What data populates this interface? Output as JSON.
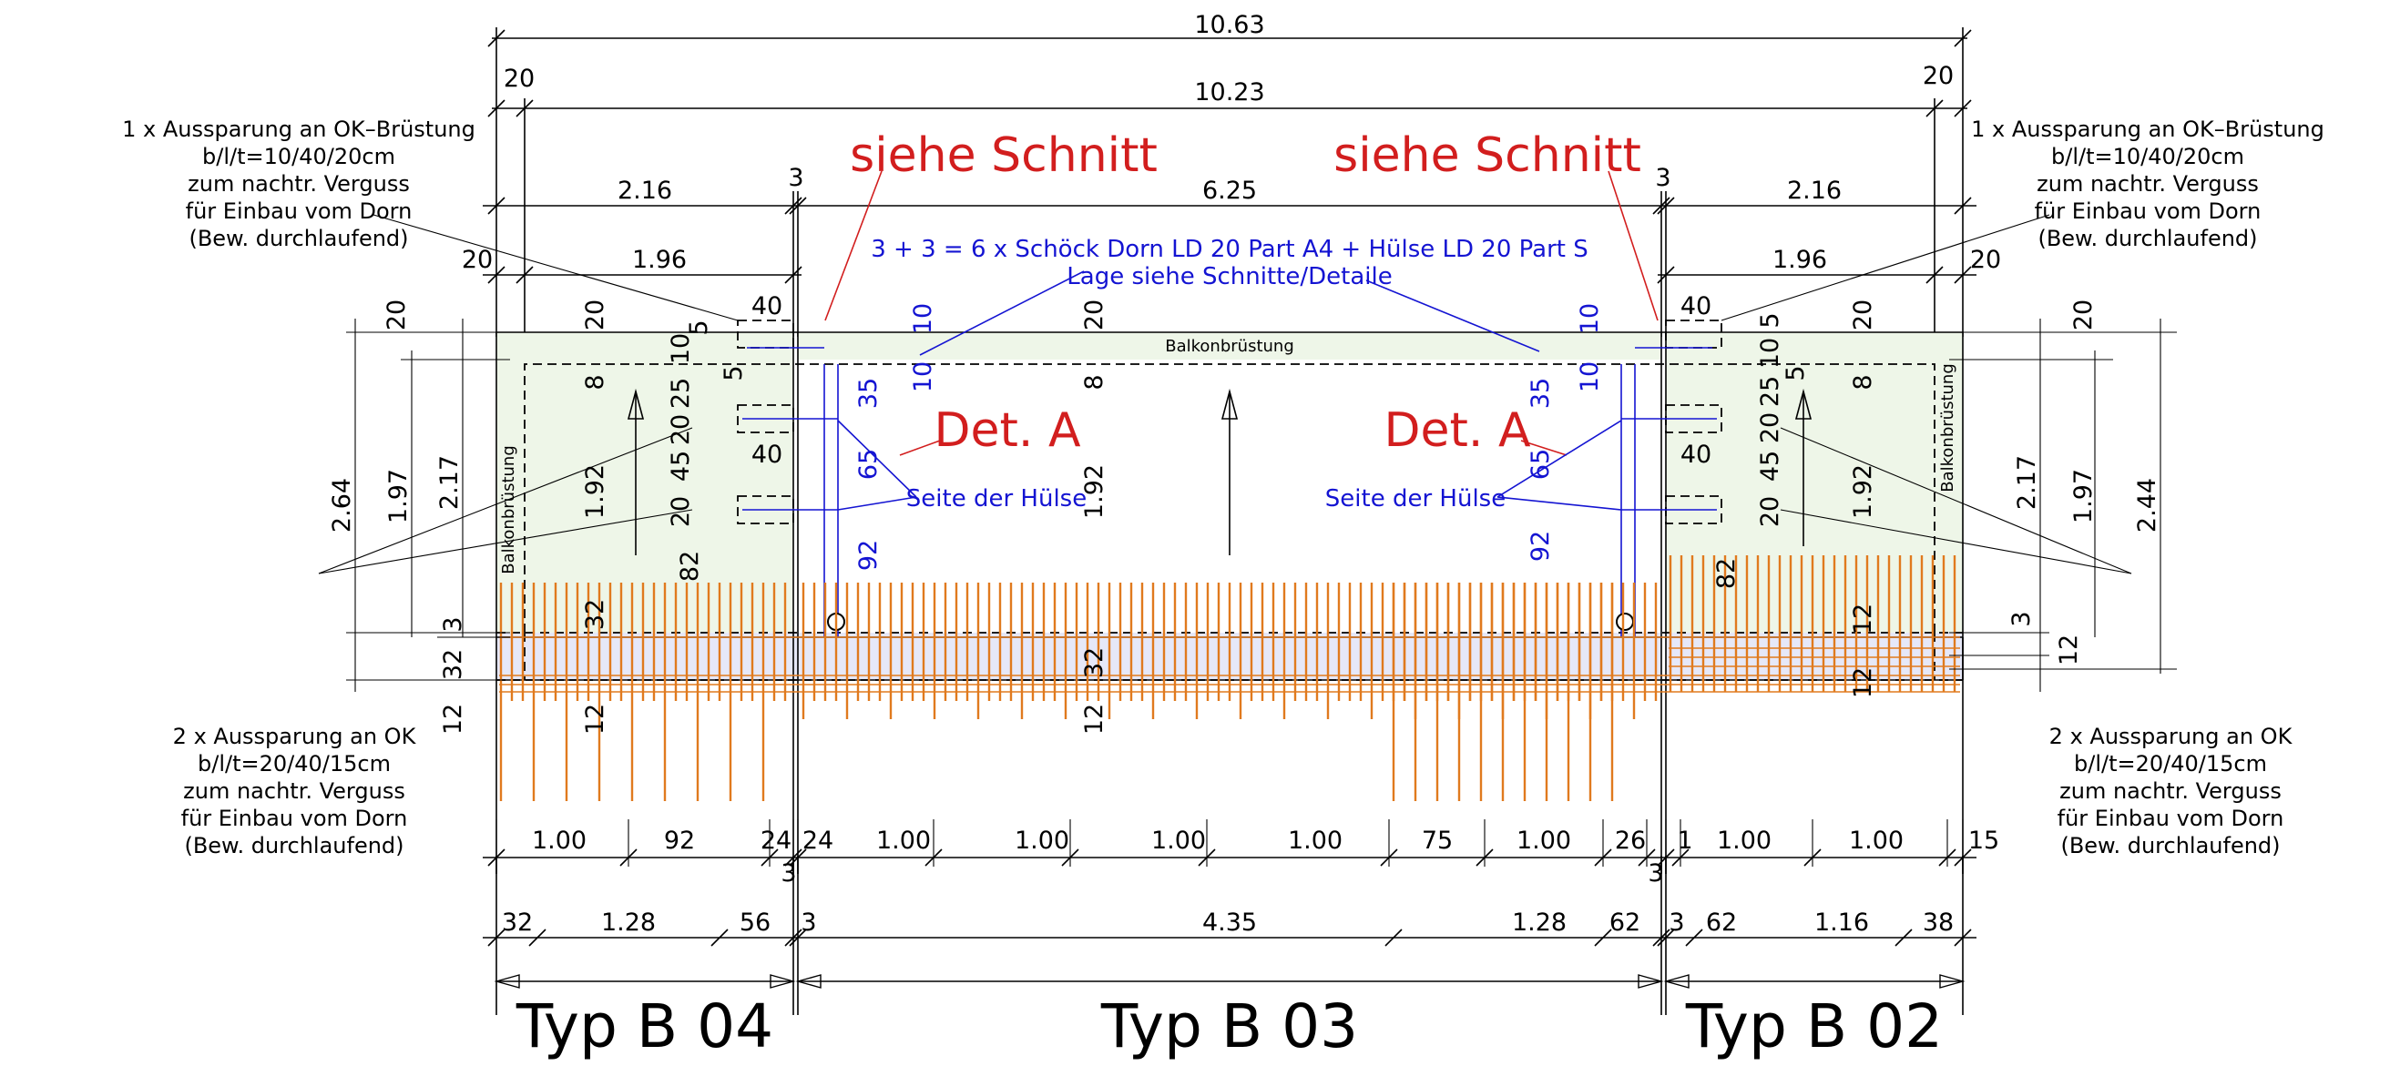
{
  "colors": {
    "line": "#000000",
    "blue": "#1414d2",
    "red": "#d21e1e",
    "reinforcement": "#e07a1e",
    "parapet_fill": "#eef6e8",
    "strip_fill": "#e6e8f8"
  },
  "top_dims": {
    "total": "10.63",
    "inner": "10.23",
    "left_offset": "20",
    "right_offset": "20",
    "seg_left": "2.16",
    "seg_mid": "6.25",
    "seg_right": "2.16",
    "joint_left": "3",
    "joint_right": "3",
    "left_sub": "1.96",
    "right_sub": "1.96",
    "left_sub_offset": "20",
    "right_sub_offset": "20"
  },
  "callouts": {
    "siehe_left": "siehe Schnitt",
    "siehe_right": "siehe Schnitt",
    "det_left": "Det. A",
    "det_right": "Det. A",
    "dorn_line1": "3 + 3 = 6 x Schöck Dorn LD 20 Part A4 + Hülse LD 20 Part S",
    "dorn_line2": "Lage siehe Schnitte/Detaile",
    "huelse_left": "Seite der Hülse",
    "huelse_right": "Seite der Hülse",
    "balkon_top": "Balkonbrüstung",
    "balkon_left": "Balkonbrüstung",
    "balkon_right": "Balkonbrüstung"
  },
  "notes": {
    "top_left": [
      "1 x Aussparung an OK–Brüstung",
      "b/l/t=10/40/20cm",
      "zum nachtr. Verguss",
      "für Einbau vom Dorn",
      "(Bew. durchlaufend)"
    ],
    "top_right": [
      "1 x Aussparung an OK–Brüstung",
      "b/l/t=10/40/20cm",
      "zum nachtr. Verguss",
      "für Einbau vom Dorn",
      "(Bew. durchlaufend)"
    ],
    "bottom_left": [
      "2 x Aussparung an OK",
      "b/l/t=20/40/15cm",
      "zum nachtr. Verguss",
      "für Einbau vom Dorn",
      "(Bew. durchlaufend)"
    ],
    "bottom_right": [
      "2 x Aussparung an OK",
      "b/l/t=20/40/15cm",
      "zum nachtr. Verguss",
      "für Einbau vom Dorn",
      "(Bew. durchlaufend)"
    ]
  },
  "left_dims": {
    "d264": "2.64",
    "d197": "1.97",
    "d217": "2.17",
    "d20a": "20",
    "d20b": "20",
    "d3": "3",
    "d32": "32",
    "d12": "12",
    "d192": "1.92",
    "d8": "8",
    "d82": "82",
    "d10": "10",
    "d5a": "5",
    "d5b": "5",
    "d25": "25",
    "d20c": "20",
    "d45": "45",
    "d20d": "20",
    "d40a": "40",
    "d40b": "40",
    "d32b": "32",
    "d12b": "12"
  },
  "mid_dims": {
    "d20": "20",
    "d8": "8",
    "d192": "1.92",
    "d32": "32",
    "d12": "12",
    "blue_10a": "10",
    "blue_10b": "10",
    "blue_35": "35",
    "blue_65": "65",
    "blue_92": "92",
    "blue_10c": "10",
    "blue_10d": "10",
    "blue_35b": "35",
    "blue_65b": "65",
    "blue_92b": "92"
  },
  "right_dims": {
    "d40a": "40",
    "d5": "5",
    "d10": "10",
    "d20": "20",
    "d8": "8",
    "d25": "25",
    "d5b": "5",
    "d20b": "20",
    "d45": "45",
    "d40b": "40",
    "d20c": "20",
    "d192": "1.92",
    "d82": "82",
    "d12a": "12",
    "d12b": "12",
    "d20e": "20",
    "d217": "2.17",
    "d197": "1.97",
    "d244": "2.44",
    "d3": "3",
    "d12c": "12"
  },
  "bottom_row1": [
    "1.00",
    "92",
    "24",
    "24",
    "1.00",
    "1.00",
    "1.00",
    "1.00",
    "75",
    "1.00",
    "26",
    "1",
    "1.00",
    "1.00",
    "15"
  ],
  "bottom_row1_extra": {
    "j3a": "3",
    "j3b": "3"
  },
  "bottom_row2": [
    "32",
    "1.28",
    "56",
    "3",
    "4.35",
    "1.28",
    "62",
    "3",
    "62",
    "1.16",
    "38"
  ],
  "types": {
    "left": "Typ  B 04",
    "mid": "Typ  B 03",
    "right": "Typ  B 02"
  }
}
